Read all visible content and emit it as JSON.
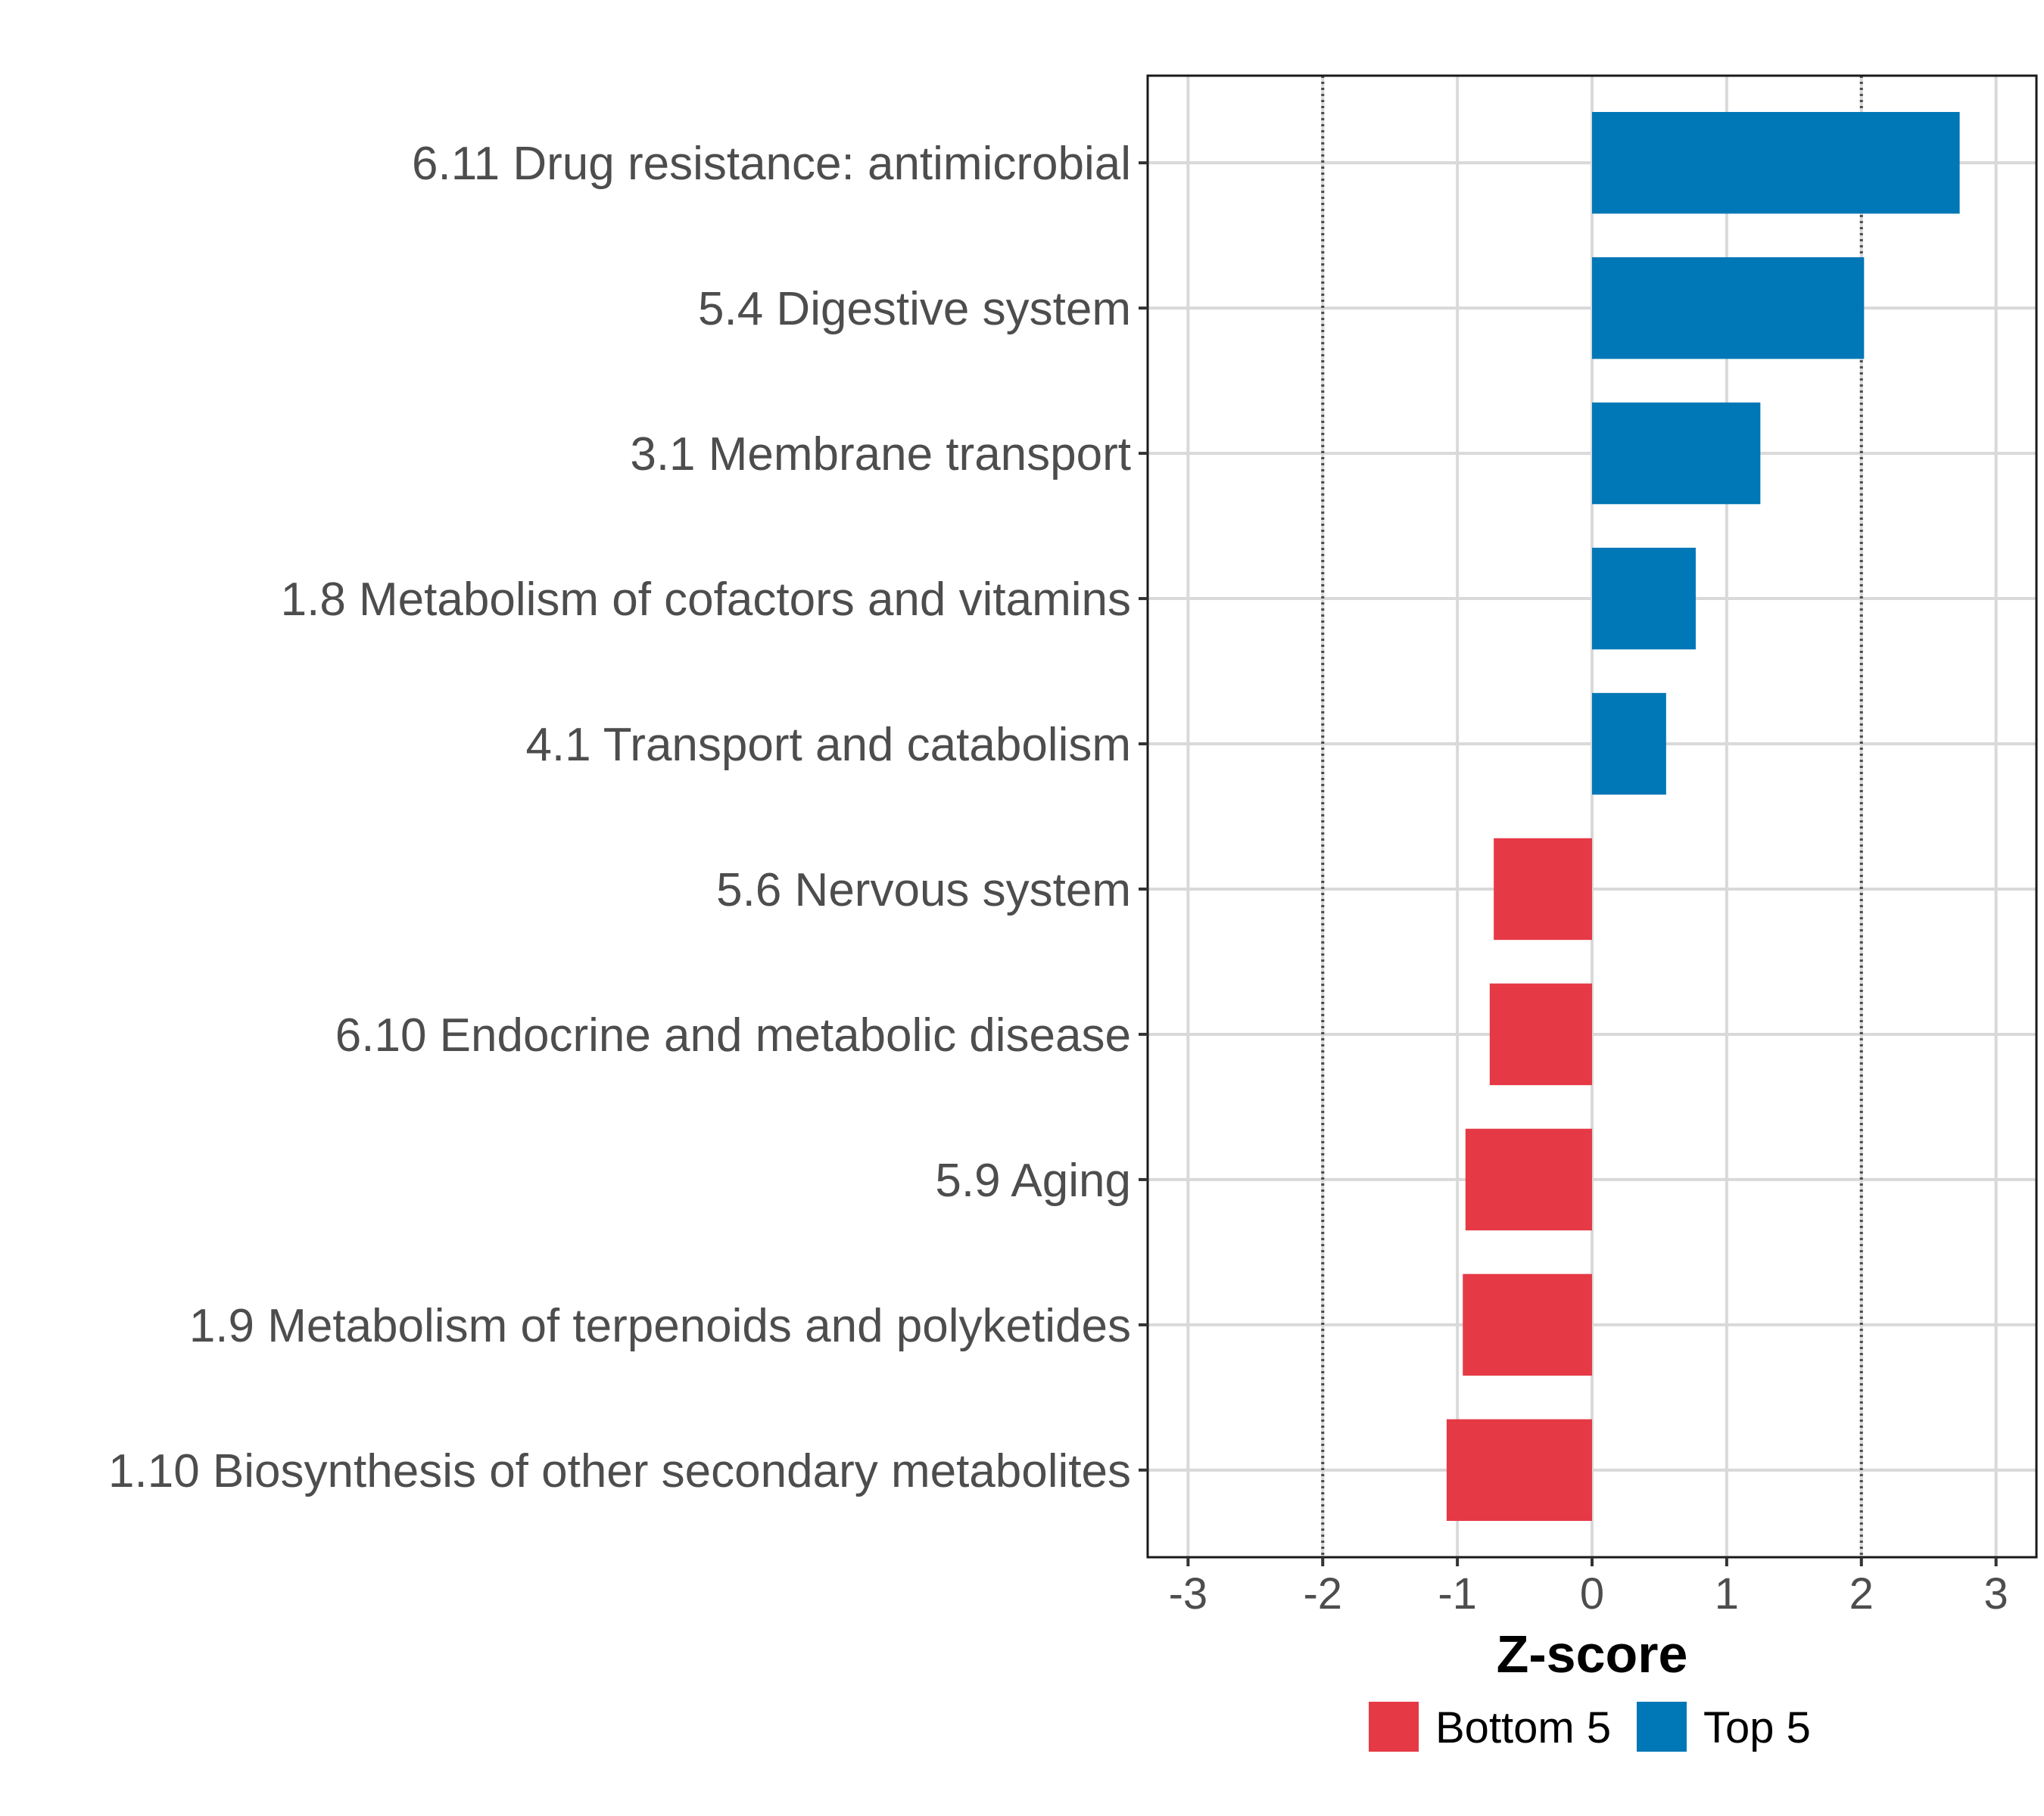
{
  "chart_data": {
    "type": "bar",
    "orientation": "horizontal",
    "categories": [
      "6.11 Drug resistance: antimicrobial",
      "5.4 Digestive system",
      "3.1 Membrane transport",
      "1.8 Metabolism of cofactors and vitamins",
      "4.1 Transport and catabolism",
      "5.6 Nervous system",
      "6.10 Endocrine and metabolic disease",
      "5.9 Aging",
      "1.9 Metabolism of terpenoids and polyketides",
      "1.10 Biosynthesis of other secondary metabolites"
    ],
    "values": [
      2.73,
      2.02,
      1.25,
      0.77,
      0.55,
      -0.73,
      -0.76,
      -0.94,
      -0.96,
      -1.08
    ],
    "groups": [
      "Top 5",
      "Top 5",
      "Top 5",
      "Top 5",
      "Top 5",
      "Bottom 5",
      "Bottom 5",
      "Bottom 5",
      "Bottom 5",
      "Bottom 5"
    ],
    "xlabel": "Z-score",
    "ylabel": "",
    "xlim": [
      -3.3,
      3.3
    ],
    "xticks": [
      -3,
      -2,
      -1,
      0,
      1,
      2,
      3
    ],
    "xtick_labels": [
      "-3",
      "-2",
      "-1",
      "0",
      "1",
      "2",
      "3"
    ],
    "reference_lines": [
      -2,
      2
    ],
    "grid": true,
    "legend": {
      "position": "bottom",
      "entries": [
        {
          "label": "Bottom 5",
          "color": "#e63946"
        },
        {
          "label": "Top 5",
          "color": "#0077b6"
        }
      ]
    }
  }
}
